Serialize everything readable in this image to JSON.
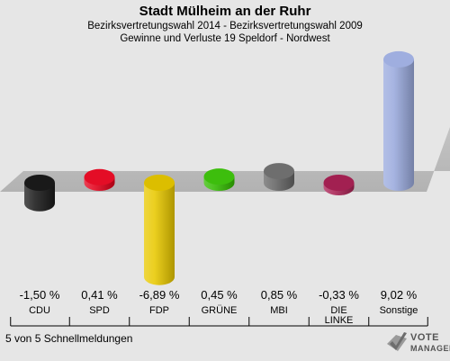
{
  "title": "Stadt Mülheim an der Ruhr",
  "subtitle1": "Bezirksvertretungswahl 2014 - Bezirksvertretungswahl 2009",
  "subtitle2": "Gewinne und Verluste 19 Speldorf - Nordwest",
  "footer": "5 von 5 Schnellmeldungen",
  "logo": {
    "line1": "VOTE",
    "line2": "MANAGER",
    "icon": "checkmark-ballot-icon"
  },
  "chart_data": {
    "type": "bar",
    "categories": [
      "CDU",
      "SPD",
      "FDP",
      "GRÜNE",
      "MBI",
      "DIE LINKE",
      "Sonstige"
    ],
    "category_lines": [
      [
        "CDU"
      ],
      [
        "SPD"
      ],
      [
        "FDP"
      ],
      [
        "GRÜNE"
      ],
      [
        "MBI"
      ],
      [
        "DIE",
        "LINKE"
      ],
      [
        "Sonstige"
      ]
    ],
    "values": [
      -1.5,
      0.41,
      -6.89,
      0.45,
      0.85,
      -0.33,
      9.02
    ],
    "value_labels": [
      "-1,50 %",
      "0,41 %",
      "-6,89 %",
      "0,45 %",
      "0,85 %",
      "-0,33 %",
      "9,02 %"
    ],
    "colors": [
      "#1a1a1a",
      "#e3001b",
      "#e8c800",
      "#33bb00",
      "#666666",
      "#aa2255",
      "#9aaadd"
    ],
    "ylim": [
      -10,
      10
    ],
    "grid": false
  }
}
